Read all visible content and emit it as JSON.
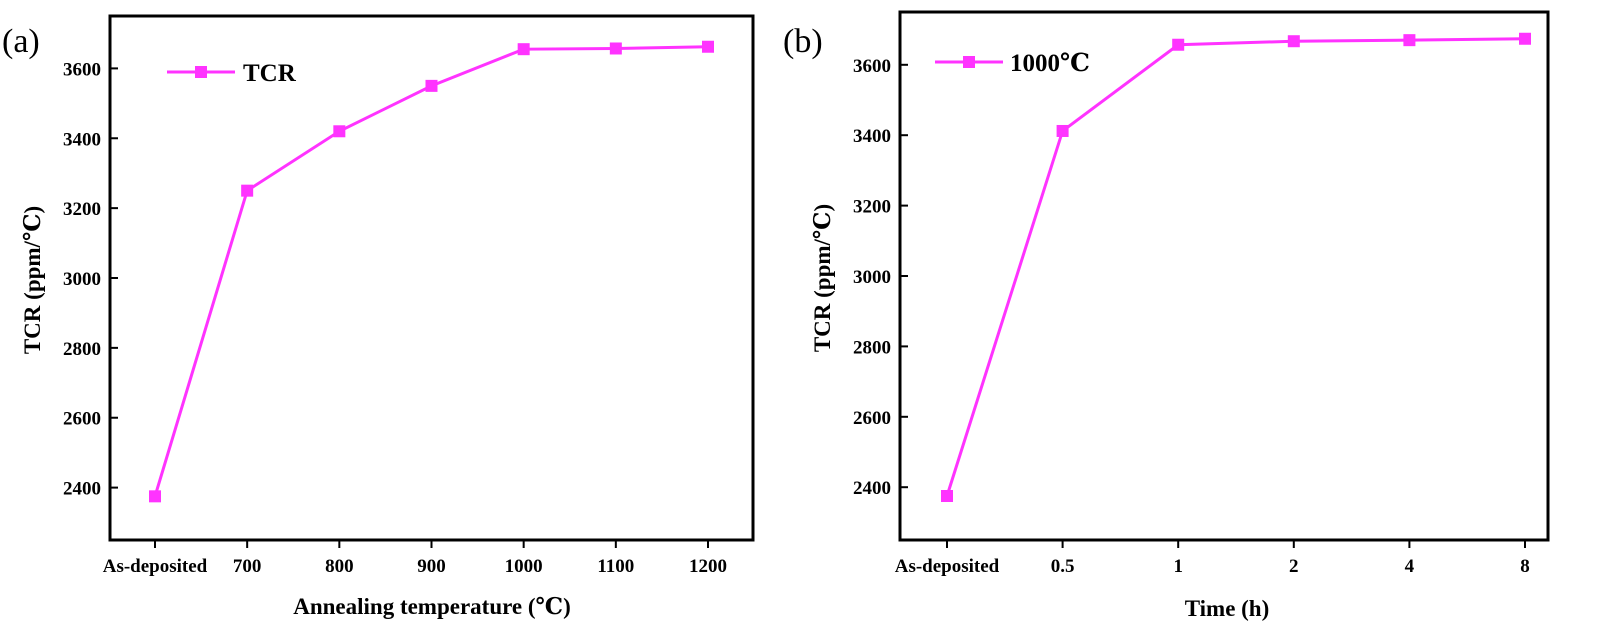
{
  "colors": {
    "series": "#ff33ff",
    "axis": "#000000",
    "background": "#ffffff"
  },
  "chart_data": [
    {
      "type": "line",
      "panel_label": "(a)",
      "categories": [
        "As-deposited",
        "700",
        "800",
        "900",
        "1000",
        "1100",
        "1200"
      ],
      "series": [
        {
          "name": "TCR",
          "values": [
            2375,
            3250,
            3420,
            3550,
            3655,
            3657,
            3662
          ]
        }
      ],
      "xlabel": "Annealing temperature (℃)",
      "ylabel": "TCR (ppm/℃)",
      "ylim": [
        2250,
        3750
      ],
      "yticks": [
        2400,
        2600,
        2800,
        3000,
        3200,
        3400,
        3600
      ],
      "legend": "top-left",
      "marker": "square",
      "grid": false
    },
    {
      "type": "line",
      "panel_label": "(b)",
      "categories": [
        "As-deposited",
        "0.5",
        "1",
        "2",
        "4",
        "8"
      ],
      "series": [
        {
          "name": "1000℃",
          "values": [
            2375,
            3412,
            3657,
            3667,
            3670,
            3674
          ]
        }
      ],
      "xlabel": "Time (h)",
      "ylabel": "TCR (ppm/℃)",
      "ylim": [
        2250,
        3750
      ],
      "yticks": [
        2400,
        2600,
        2800,
        3000,
        3200,
        3400,
        3600
      ],
      "legend": "top-left",
      "marker": "square",
      "grid": false
    }
  ]
}
